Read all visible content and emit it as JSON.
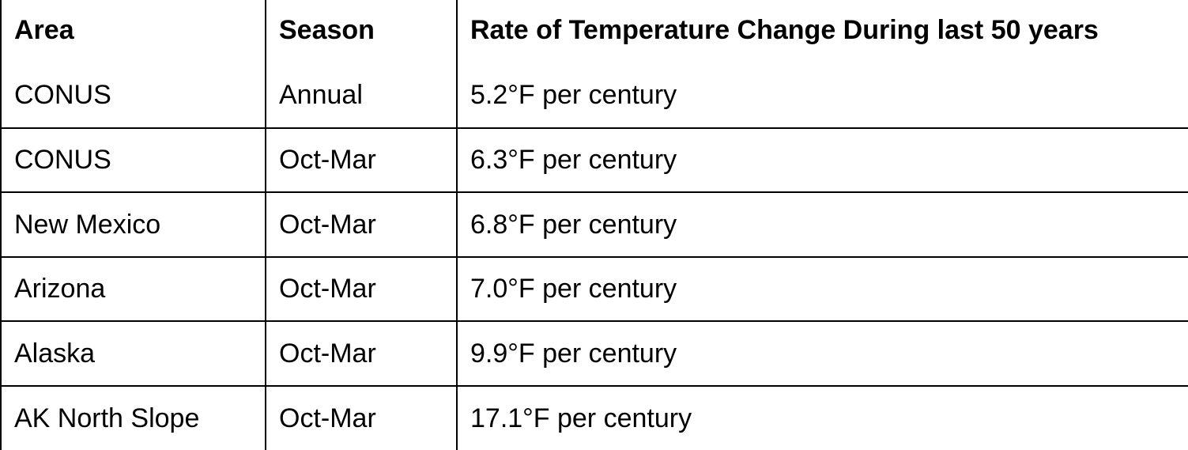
{
  "table": {
    "headers": [
      "Area",
      "Season",
      "Rate of Temperature Change During last 50 years"
    ],
    "rows": [
      [
        "CONUS",
        "Annual",
        "5.2°F per century"
      ],
      [
        "CONUS",
        "Oct-Mar",
        "6.3°F per century"
      ],
      [
        "New Mexico",
        "Oct-Mar",
        "6.8°F per century"
      ],
      [
        "Arizona",
        "Oct-Mar",
        "7.0°F per century"
      ],
      [
        "Alaska",
        "Oct-Mar",
        "9.9°F per century"
      ],
      [
        "AK North Slope",
        "Oct-Mar",
        "17.1°F per century"
      ]
    ]
  }
}
